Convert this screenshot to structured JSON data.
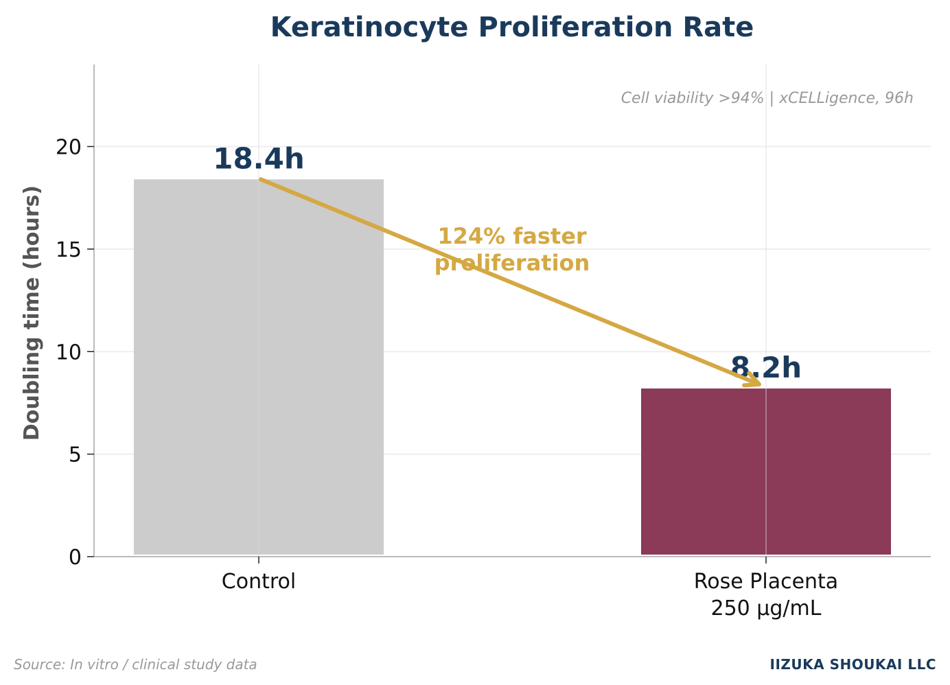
{
  "chart_data": {
    "type": "bar",
    "title": "Keratinocyte Proliferation Rate",
    "ylabel": "Doubling time (hours)",
    "xlabel": "",
    "ylim": [
      0,
      24
    ],
    "yticks": [
      0,
      5,
      10,
      15,
      20
    ],
    "categories": [
      {
        "lines": [
          "Control"
        ]
      },
      {
        "lines": [
          "Rose Placenta",
          "250 µg/mL"
        ]
      }
    ],
    "values": [
      18.4,
      8.2
    ],
    "value_labels": [
      "18.4h",
      "8.2h"
    ],
    "bar_colors": [
      "#cccccc",
      "#8b3a58"
    ],
    "annotation": {
      "lines": [
        "124% faster",
        "proliferation"
      ],
      "arrow_from_value": 18.4,
      "arrow_to_value": 8.2,
      "color": "#d4a843"
    },
    "note": "Cell viability >94% | xCELLigence, 96h",
    "grid": true
  },
  "footer": {
    "source": "Source: In vitro / clinical study data",
    "brand": "IIZUKA SHOUKAI LLC"
  },
  "colors": {
    "title": "#1a3a5c",
    "grid": "#eeeeee",
    "axis": "#bbbbbb"
  }
}
